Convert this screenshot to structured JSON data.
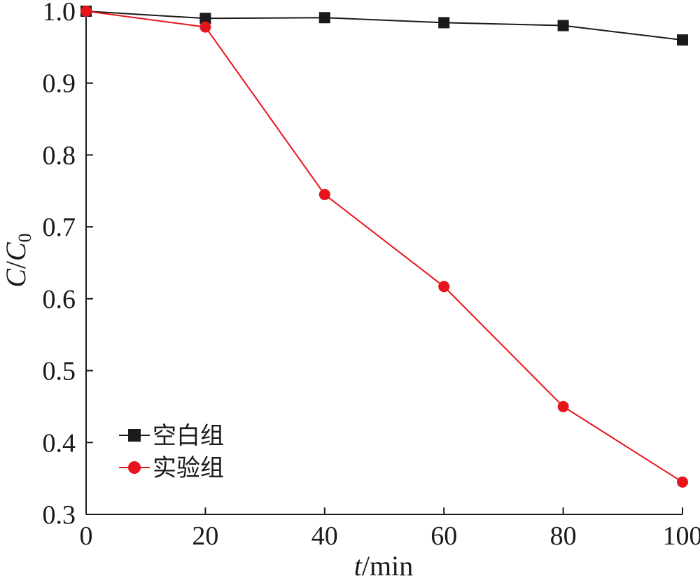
{
  "chart_data": {
    "type": "line",
    "xlabel": {
      "italic": "t",
      "rest": "/min"
    },
    "ylabel": {
      "c1": "C",
      "slash": "/",
      "c2": "C",
      "sub": "0"
    },
    "xlim": [
      0,
      100
    ],
    "ylim": [
      0.3,
      1.0
    ],
    "xticks": [
      0,
      20,
      40,
      60,
      80,
      100
    ],
    "xtick_labels": [
      "0",
      "20",
      "40",
      "60",
      "80",
      "100"
    ],
    "yticks": [
      0.3,
      0.4,
      0.5,
      0.6,
      0.7,
      0.8,
      0.9,
      1.0
    ],
    "ytick_labels": [
      "0.3",
      "0.4",
      "0.5",
      "0.6",
      "0.7",
      "0.8",
      "0.9",
      "1.0"
    ],
    "grid": false,
    "legend_position": "lower-left",
    "x": [
      0,
      20,
      40,
      60,
      80,
      100
    ],
    "series": [
      {
        "name": "空白组",
        "color": "#1a1a1a",
        "marker": "square",
        "values": [
          1.0,
          0.99,
          0.991,
          0.984,
          0.98,
          0.96
        ]
      },
      {
        "name": "实验组",
        "color": "#e8141b",
        "marker": "circle",
        "values": [
          1.0,
          0.978,
          0.745,
          0.617,
          0.45,
          0.345
        ]
      }
    ]
  }
}
